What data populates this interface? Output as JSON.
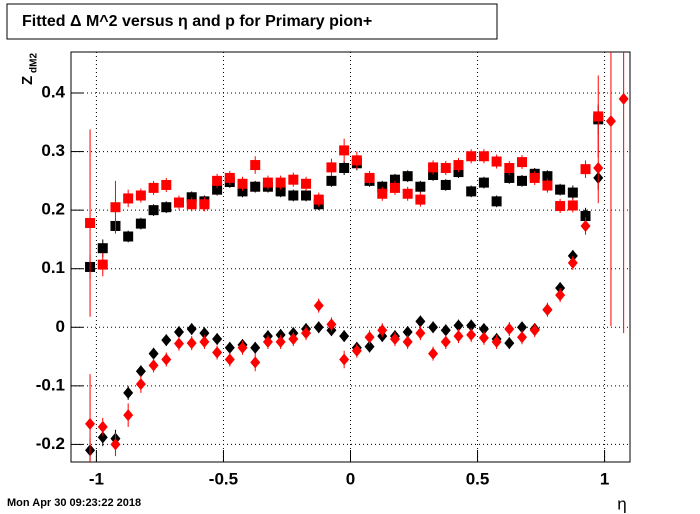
{
  "chart_data": {
    "type": "scatter",
    "title": "Fitted Δ M^2 versus η and p for Primary pion+",
    "y_label": "Z",
    "y_label_sub": "dM2",
    "x_label": "η",
    "timestamp": "Mon Apr 30 09:23:22 2018",
    "xlim": [
      -1.1,
      1.1
    ],
    "ylim": [
      -0.23,
      0.47
    ],
    "xticks": [
      -1,
      -0.5,
      0,
      0.5,
      1
    ],
    "yticks": [
      -0.2,
      -0.1,
      0,
      0.1,
      0.2,
      0.3,
      0.4
    ],
    "grid": true,
    "x": [
      -1.025,
      -0.975,
      -0.925,
      -0.875,
      -0.825,
      -0.775,
      -0.725,
      -0.675,
      -0.625,
      -0.575,
      -0.525,
      -0.475,
      -0.425,
      -0.375,
      -0.325,
      -0.275,
      -0.225,
      -0.175,
      -0.125,
      -0.075,
      -0.025,
      0.025,
      0.075,
      0.125,
      0.175,
      0.225,
      0.275,
      0.325,
      0.375,
      0.425,
      0.475,
      0.525,
      0.575,
      0.625,
      0.675,
      0.725,
      0.775,
      0.825,
      0.875,
      0.925,
      0.975,
      1.025,
      1.075
    ],
    "series": [
      {
        "color": "#000000",
        "marker": "square",
        "values": [
          0.103,
          0.135,
          0.173,
          0.155,
          0.177,
          0.2,
          0.205,
          0.213,
          0.222,
          0.215,
          0.235,
          0.248,
          0.232,
          0.24,
          0.24,
          0.232,
          0.225,
          0.225,
          0.21,
          0.25,
          0.272,
          0.28,
          0.25,
          0.24,
          0.252,
          0.258,
          0.24,
          0.26,
          0.243,
          0.265,
          0.232,
          0.247,
          0.215,
          0.255,
          0.25,
          0.262,
          0.258,
          0.235,
          0.23,
          0.19,
          0.355,
          null,
          null
        ],
        "errors": [
          0.02,
          0.015,
          0.012,
          0.01,
          0.01,
          0.01,
          0.01,
          0.01,
          0.01,
          0.01,
          0.01,
          0.01,
          0.01,
          0.01,
          0.01,
          0.01,
          0.01,
          0.01,
          0.01,
          0.01,
          0.012,
          0.012,
          0.01,
          0.01,
          0.01,
          0.01,
          0.01,
          0.01,
          0.01,
          0.01,
          0.01,
          0.01,
          0.01,
          0.01,
          0.01,
          0.01,
          0.01,
          0.01,
          0.012,
          0.012,
          0.025,
          null,
          null
        ]
      },
      {
        "color": "#ff0000",
        "marker": "square",
        "values": [
          0.178,
          0.107,
          0.205,
          0.22,
          0.225,
          0.238,
          0.243,
          0.213,
          0.21,
          0.21,
          0.25,
          0.255,
          0.245,
          0.277,
          0.247,
          0.247,
          0.252,
          0.245,
          0.218,
          0.273,
          0.302,
          0.285,
          0.255,
          0.228,
          0.238,
          0.228,
          0.218,
          0.273,
          0.272,
          0.277,
          0.292,
          0.292,
          0.283,
          0.272,
          0.282,
          0.255,
          0.242,
          0.207,
          0.208,
          0.27,
          0.36,
          null,
          null
        ],
        "errors": [
          0.16,
          0.02,
          0.045,
          0.015,
          0.012,
          0.012,
          0.012,
          0.012,
          0.012,
          0.012,
          0.012,
          0.012,
          0.012,
          0.015,
          0.012,
          0.012,
          0.012,
          0.012,
          0.012,
          0.015,
          0.02,
          0.015,
          0.012,
          0.012,
          0.012,
          0.012,
          0.012,
          0.012,
          0.012,
          0.012,
          0.012,
          0.012,
          0.012,
          0.012,
          0.012,
          0.012,
          0.012,
          0.012,
          0.012,
          0.015,
          0.07,
          null,
          null
        ]
      },
      {
        "color": "#000000",
        "marker": "diamond",
        "values": [
          -0.21,
          -0.188,
          -0.19,
          -0.112,
          -0.075,
          -0.045,
          -0.022,
          -0.008,
          -0.003,
          -0.01,
          -0.02,
          -0.035,
          -0.03,
          -0.035,
          -0.015,
          -0.013,
          -0.01,
          -0.003,
          0,
          -0.005,
          -0.015,
          -0.035,
          -0.033,
          -0.015,
          -0.015,
          -0.008,
          0.01,
          0,
          -0.005,
          0.003,
          0.003,
          -0.003,
          -0.02,
          -0.027,
          0,
          -0.003,
          0.03,
          0.067,
          0.122,
          0.192,
          0.255,
          null,
          null
        ],
        "errors": [
          0.02,
          0.015,
          0.015,
          0.012,
          0.01,
          0.01,
          0.01,
          0.01,
          0.01,
          0.01,
          0.01,
          0.01,
          0.01,
          0.01,
          0.01,
          0.01,
          0.01,
          0.01,
          0.01,
          0.01,
          0.01,
          0.01,
          0.01,
          0.01,
          0.01,
          0.01,
          0.01,
          0.01,
          0.01,
          0.01,
          0.01,
          0.01,
          0.01,
          0.01,
          0.01,
          0.01,
          0.01,
          0.01,
          0.01,
          0.012,
          0.02,
          null,
          null
        ]
      },
      {
        "color": "#ff0000",
        "marker": "diamond",
        "values": [
          -0.165,
          -0.17,
          -0.2,
          -0.15,
          -0.097,
          -0.065,
          -0.055,
          -0.028,
          -0.027,
          -0.025,
          -0.043,
          -0.055,
          -0.035,
          -0.06,
          -0.025,
          -0.025,
          -0.02,
          -0.01,
          0.037,
          0.005,
          -0.055,
          -0.04,
          -0.017,
          -0.005,
          -0.02,
          -0.025,
          -0.01,
          -0.045,
          -0.025,
          -0.015,
          -0.013,
          -0.018,
          -0.025,
          -0.003,
          -0.017,
          -0.005,
          0.03,
          0.055,
          0.11,
          0.173,
          0.272,
          0.352,
          0.39
        ],
        "errors": [
          0.085,
          0.015,
          0.02,
          0.02,
          0.015,
          0.012,
          0.012,
          0.012,
          0.012,
          0.012,
          0.012,
          0.012,
          0.012,
          0.015,
          0.012,
          0.012,
          0.012,
          0.012,
          0.012,
          0.012,
          0.015,
          0.012,
          0.012,
          0.012,
          0.012,
          0.012,
          0.012,
          0.012,
          0.012,
          0.012,
          0.012,
          0.012,
          0.012,
          0.012,
          0.012,
          0.012,
          0.012,
          0.012,
          0.012,
          0.015,
          0.06,
          0.35,
          0.4
        ]
      }
    ]
  }
}
